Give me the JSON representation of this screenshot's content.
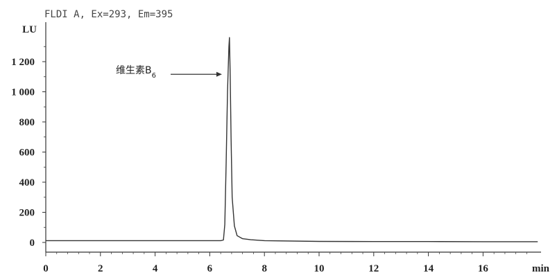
{
  "chart_data": {
    "type": "line",
    "title": "FLDI A, Ex=293, Em=395",
    "ylabel": "LU",
    "xlabel": "min",
    "xlim": [
      0,
      18
    ],
    "ylim": [
      -50,
      1400
    ],
    "x_ticks": [
      0,
      2,
      4,
      6,
      8,
      10,
      12,
      14,
      16
    ],
    "y_ticks": [
      0,
      200,
      400,
      600,
      800,
      1000,
      1200
    ],
    "y_tick_labels": [
      "0",
      "200",
      "400",
      "600",
      "800",
      "1 000",
      "1 200"
    ],
    "x_tick_labels": [
      "0",
      "2",
      "4",
      "6",
      "8",
      "10",
      "12",
      "14",
      "16"
    ],
    "series": [
      {
        "x": [
          0,
          2,
          4,
          6,
          6.4,
          6.5,
          6.55,
          6.6,
          6.65,
          6.7,
          6.72,
          6.75,
          6.78,
          6.82,
          6.9,
          7.0,
          7.2,
          7.5,
          8.0,
          10,
          12,
          14,
          16,
          18
        ],
        "y": [
          12,
          12,
          12,
          12,
          12,
          16,
          120,
          520,
          1000,
          1300,
          1360,
          1100,
          700,
          300,
          110,
          45,
          25,
          18,
          12,
          7,
          6,
          6,
          5,
          5
        ]
      }
    ],
    "annotations": [
      {
        "text": "维生素B",
        "subscript": "6",
        "x": 6.7,
        "y": 1130
      }
    ],
    "colors": {
      "line": "#333333",
      "axis": "#333333",
      "arrow": "#333333"
    }
  }
}
